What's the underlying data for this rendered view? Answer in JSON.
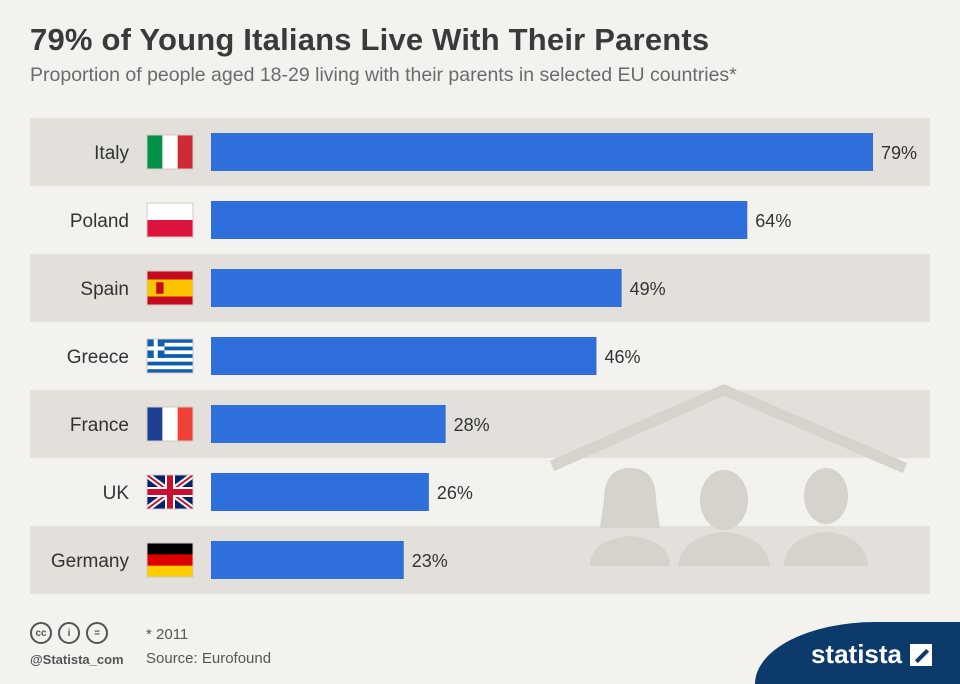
{
  "header": {
    "title": "79% of Young Italians Live With Their Parents",
    "subtitle": "Proportion of people aged 18-29 living with their parents in selected EU countries*"
  },
  "colors": {
    "bar": "#2f6fdc",
    "row_band": "#e3dfda",
    "illustration": "#d6d2cc",
    "brand": "#0b3a6b"
  },
  "chart_data": {
    "type": "bar",
    "orientation": "horizontal",
    "categories": [
      "Italy",
      "Poland",
      "Spain",
      "Greece",
      "France",
      "UK",
      "Germany"
    ],
    "values": [
      79,
      64,
      49,
      46,
      28,
      26,
      23
    ],
    "value_labels": [
      "79%",
      "64%",
      "49%",
      "46%",
      "28%",
      "26%",
      "23%"
    ],
    "flags": [
      "italy-flag-icon",
      "poland-flag-icon",
      "spain-flag-icon",
      "greece-flag-icon",
      "france-flag-icon",
      "uk-flag-icon",
      "germany-flag-icon"
    ],
    "xlim": [
      0,
      79
    ],
    "grid": false
  },
  "footer": {
    "cc_icons": [
      "cc-icon",
      "by-icon",
      "nd-icon"
    ],
    "handle": "@Statista_com",
    "note": "* 2011",
    "source": "Source: Eurofound",
    "brand": "statista"
  }
}
